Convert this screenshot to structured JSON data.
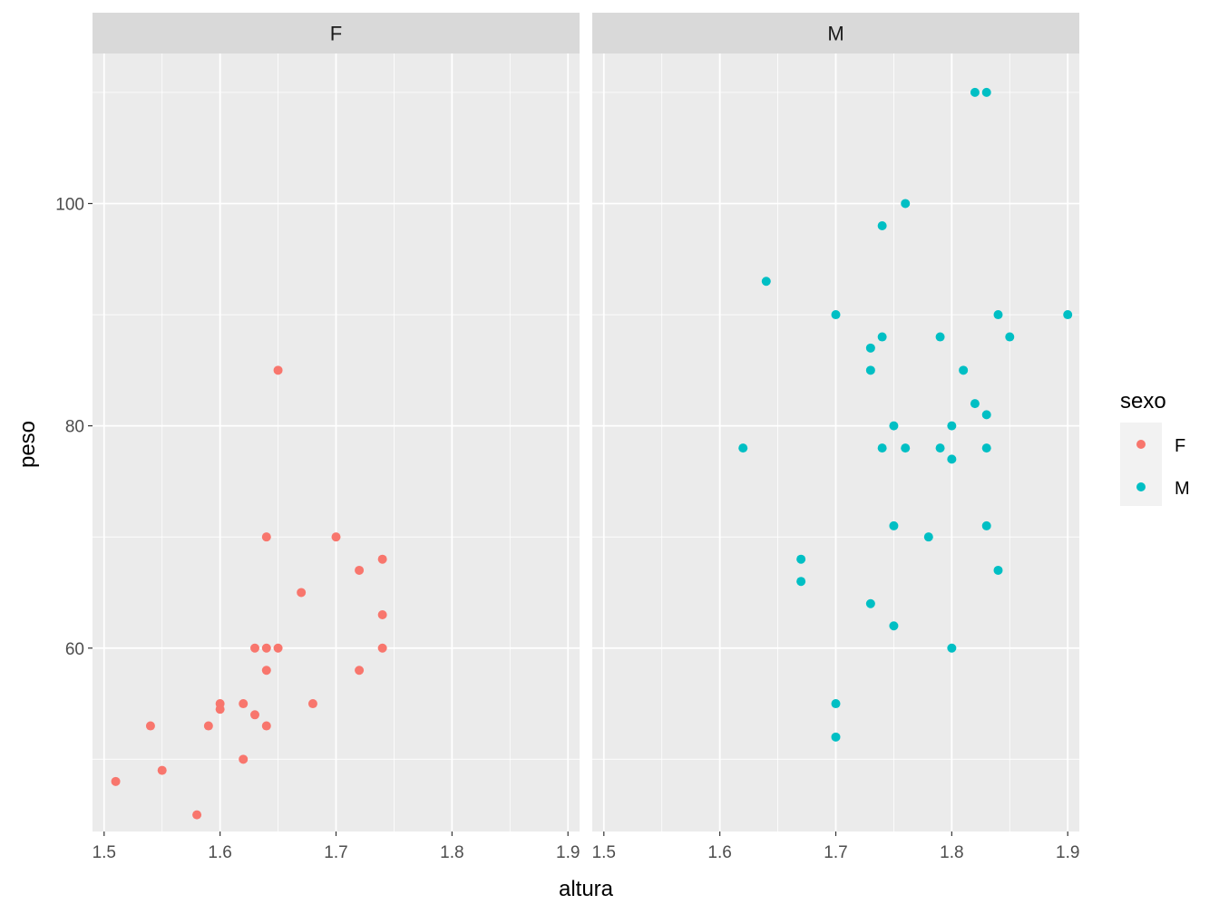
{
  "chart_data": {
    "type": "scatter",
    "facet_by": "sexo",
    "xlabel": "altura",
    "ylabel": "peso",
    "xlim": [
      1.49,
      1.91
    ],
    "ylim": [
      43.5,
      113.5
    ],
    "x_ticks": [
      1.5,
      1.6,
      1.7,
      1.8,
      1.9
    ],
    "x_tick_labels": [
      "1.5",
      "1.6",
      "1.7",
      "1.8",
      "1.9"
    ],
    "y_ticks": [
      60,
      80,
      100
    ],
    "y_tick_labels": [
      "60",
      "80",
      "100"
    ],
    "grid": true,
    "legend": {
      "title": "sexo",
      "position": "right",
      "entries": [
        {
          "label": "F",
          "color": "#F8766D"
        },
        {
          "label": "M",
          "color": "#00BFC4"
        }
      ]
    },
    "panels": [
      {
        "label": "F",
        "color": "#F8766D",
        "points": [
          {
            "x": 1.51,
            "y": 48
          },
          {
            "x": 1.54,
            "y": 53
          },
          {
            "x": 1.55,
            "y": 49
          },
          {
            "x": 1.58,
            "y": 45
          },
          {
            "x": 1.59,
            "y": 53
          },
          {
            "x": 1.6,
            "y": 55
          },
          {
            "x": 1.6,
            "y": 54.5
          },
          {
            "x": 1.62,
            "y": 55
          },
          {
            "x": 1.62,
            "y": 50
          },
          {
            "x": 1.63,
            "y": 60
          },
          {
            "x": 1.63,
            "y": 54
          },
          {
            "x": 1.64,
            "y": 70
          },
          {
            "x": 1.64,
            "y": 60
          },
          {
            "x": 1.64,
            "y": 58
          },
          {
            "x": 1.64,
            "y": 53
          },
          {
            "x": 1.65,
            "y": 85
          },
          {
            "x": 1.65,
            "y": 60
          },
          {
            "x": 1.67,
            "y": 65
          },
          {
            "x": 1.68,
            "y": 55
          },
          {
            "x": 1.7,
            "y": 70
          },
          {
            "x": 1.72,
            "y": 67
          },
          {
            "x": 1.72,
            "y": 58
          },
          {
            "x": 1.74,
            "y": 68
          },
          {
            "x": 1.74,
            "y": 63
          },
          {
            "x": 1.74,
            "y": 60
          }
        ]
      },
      {
        "label": "M",
        "color": "#00BFC4",
        "points": [
          {
            "x": 1.62,
            "y": 78
          },
          {
            "x": 1.64,
            "y": 93
          },
          {
            "x": 1.67,
            "y": 68
          },
          {
            "x": 1.67,
            "y": 66
          },
          {
            "x": 1.7,
            "y": 90
          },
          {
            "x": 1.7,
            "y": 55
          },
          {
            "x": 1.7,
            "y": 52
          },
          {
            "x": 1.73,
            "y": 87
          },
          {
            "x": 1.73,
            "y": 85
          },
          {
            "x": 1.73,
            "y": 64
          },
          {
            "x": 1.74,
            "y": 98
          },
          {
            "x": 1.74,
            "y": 88
          },
          {
            "x": 1.74,
            "y": 78
          },
          {
            "x": 1.75,
            "y": 80
          },
          {
            "x": 1.75,
            "y": 71
          },
          {
            "x": 1.75,
            "y": 62
          },
          {
            "x": 1.76,
            "y": 100
          },
          {
            "x": 1.76,
            "y": 78
          },
          {
            "x": 1.78,
            "y": 70
          },
          {
            "x": 1.79,
            "y": 88
          },
          {
            "x": 1.79,
            "y": 78
          },
          {
            "x": 1.8,
            "y": 80
          },
          {
            "x": 1.8,
            "y": 77
          },
          {
            "x": 1.8,
            "y": 60
          },
          {
            "x": 1.81,
            "y": 85
          },
          {
            "x": 1.82,
            "y": 110
          },
          {
            "x": 1.82,
            "y": 82
          },
          {
            "x": 1.83,
            "y": 110
          },
          {
            "x": 1.83,
            "y": 81
          },
          {
            "x": 1.83,
            "y": 78
          },
          {
            "x": 1.83,
            "y": 71
          },
          {
            "x": 1.84,
            "y": 90
          },
          {
            "x": 1.84,
            "y": 67
          },
          {
            "x": 1.85,
            "y": 88
          },
          {
            "x": 1.9,
            "y": 90
          }
        ]
      }
    ]
  }
}
